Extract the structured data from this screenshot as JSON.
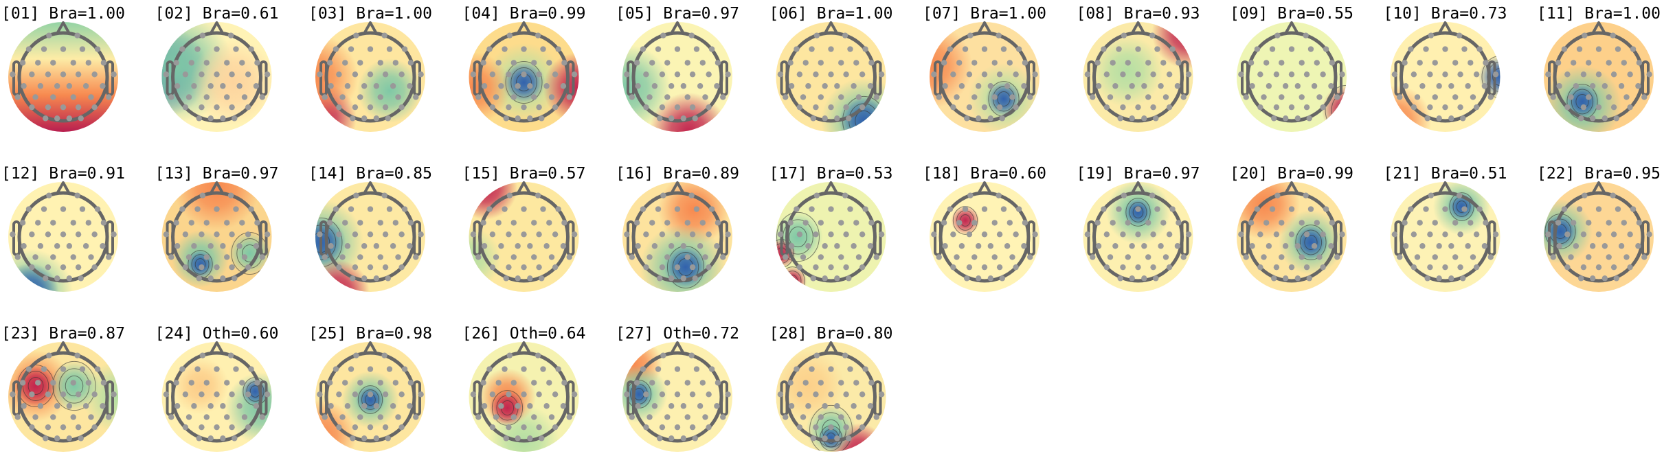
{
  "colormap": {
    "blue": "#3262ad",
    "green": "#7fc8a6",
    "lightgreen": "#b5dfa3",
    "yellow": "#fff3b3",
    "orange": "#f7894f",
    "red": "#c2254f"
  },
  "components": [
    {
      "title": "[01] Bra=1.00",
      "index": "01",
      "label": "Bra",
      "score": "1.00"
    },
    {
      "title": "[02] Bra=0.61",
      "index": "02",
      "label": "Bra",
      "score": "0.61"
    },
    {
      "title": "[03] Bra=1.00",
      "index": "03",
      "label": "Bra",
      "score": "1.00"
    },
    {
      "title": "[04] Bra=0.99",
      "index": "04",
      "label": "Bra",
      "score": "0.99"
    },
    {
      "title": "[05] Bra=0.97",
      "index": "05",
      "label": "Bra",
      "score": "0.97"
    },
    {
      "title": "[06] Bra=1.00",
      "index": "06",
      "label": "Bra",
      "score": "1.00"
    },
    {
      "title": "[07] Bra=1.00",
      "index": "07",
      "label": "Bra",
      "score": "1.00"
    },
    {
      "title": "[08] Bra=0.93",
      "index": "08",
      "label": "Bra",
      "score": "0.93"
    },
    {
      "title": "[09] Bra=0.55",
      "index": "09",
      "label": "Bra",
      "score": "0.55"
    },
    {
      "title": "[10] Bra=0.73",
      "index": "10",
      "label": "Bra",
      "score": "0.73"
    },
    {
      "title": "[11] Bra=1.00",
      "index": "11",
      "label": "Bra",
      "score": "1.00"
    },
    {
      "title": "[12] Bra=0.91",
      "index": "12",
      "label": "Bra",
      "score": "0.91"
    },
    {
      "title": "[13] Bra=0.97",
      "index": "13",
      "label": "Bra",
      "score": "0.97"
    },
    {
      "title": "[14] Bra=0.85",
      "index": "14",
      "label": "Bra",
      "score": "0.85"
    },
    {
      "title": "[15] Bra=0.57",
      "index": "15",
      "label": "Bra",
      "score": "0.57"
    },
    {
      "title": "[16] Bra=0.89",
      "index": "16",
      "label": "Bra",
      "score": "0.89"
    },
    {
      "title": "[17] Bra=0.53",
      "index": "17",
      "label": "Bra",
      "score": "0.53"
    },
    {
      "title": "[18] Bra=0.60",
      "index": "18",
      "label": "Bra",
      "score": "0.60"
    },
    {
      "title": "[19] Bra=0.97",
      "index": "19",
      "label": "Bra",
      "score": "0.97"
    },
    {
      "title": "[20] Bra=0.99",
      "index": "20",
      "label": "Bra",
      "score": "0.99"
    },
    {
      "title": "[21] Bra=0.51",
      "index": "21",
      "label": "Bra",
      "score": "0.51"
    },
    {
      "title": "[22] Bra=0.95",
      "index": "22",
      "label": "Bra",
      "score": "0.95"
    },
    {
      "title": "[23] Bra=0.87",
      "index": "23",
      "label": "Bra",
      "score": "0.87"
    },
    {
      "title": "[24] Oth=0.60",
      "index": "24",
      "label": "Oth",
      "score": "0.60"
    },
    {
      "title": "[25] Bra=0.98",
      "index": "25",
      "label": "Bra",
      "score": "0.98"
    },
    {
      "title": "[26] Oth=0.64",
      "index": "26",
      "label": "Oth",
      "score": "0.64"
    },
    {
      "title": "[27] Oth=0.72",
      "index": "27",
      "label": "Oth",
      "score": "0.72"
    },
    {
      "title": "[28] Bra=0.80",
      "index": "28",
      "label": "Bra",
      "score": "0.80"
    }
  ]
}
